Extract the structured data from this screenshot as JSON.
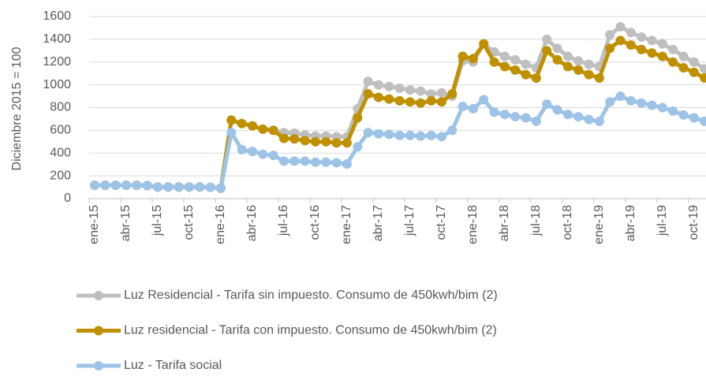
{
  "chart_data": {
    "type": "line",
    "y_label": "Diciembre 2015 = 100",
    "categories": [
      "ene-15",
      null,
      null,
      "abr-15",
      null,
      null,
      "jul-15",
      null,
      null,
      "oct-15",
      null,
      null,
      "ene-16",
      null,
      null,
      "abr-16",
      null,
      null,
      "jul-16",
      null,
      null,
      "oct-16",
      null,
      null,
      "ene-17",
      null,
      null,
      "abr-17",
      null,
      null,
      "jul-17",
      null,
      null,
      "oct-17",
      null,
      null,
      "ene-18",
      null,
      null,
      "abr-18",
      null,
      null,
      "jul-18",
      null,
      null,
      "oct-18",
      null,
      null,
      "ene-19",
      null,
      null,
      "abr-19",
      null,
      null,
      "jul-19",
      null,
      null,
      "oct-19",
      null
    ],
    "series": [
      {
        "name": "Luz Residencial - Tarifa sin impuesto. Consumo de 450kwh/bim (2)",
        "color": "#bfbfbf",
        "values": [
          118,
          118,
          118,
          118,
          118,
          115,
          102,
          102,
          102,
          102,
          102,
          100,
          92,
          690,
          660,
          640,
          610,
          600,
          580,
          575,
          560,
          550,
          550,
          545,
          545,
          790,
          1030,
          1000,
          985,
          970,
          955,
          945,
          920,
          930,
          900,
          1210,
          1200,
          1360,
          1290,
          1250,
          1220,
          1180,
          1150,
          1400,
          1320,
          1250,
          1210,
          1180,
          1160,
          1440,
          1510,
          1460,
          1420,
          1390,
          1360,
          1310,
          1250,
          1200,
          1140
        ]
      },
      {
        "name": "Luz residencial  - Tarifa con impuesto. Consumo de 450kwh/bim (2)",
        "color": "#bf9000",
        "values": [
          118,
          118,
          118,
          118,
          118,
          115,
          102,
          102,
          102,
          102,
          102,
          100,
          92,
          690,
          660,
          640,
          610,
          600,
          530,
          525,
          510,
          500,
          500,
          490,
          490,
          710,
          920,
          890,
          875,
          860,
          850,
          840,
          860,
          850,
          920,
          1250,
          1230,
          1360,
          1200,
          1160,
          1130,
          1090,
          1060,
          1300,
          1220,
          1160,
          1130,
          1090,
          1060,
          1320,
          1390,
          1350,
          1310,
          1280,
          1250,
          1200,
          1150,
          1110,
          1060
        ]
      },
      {
        "name": "Luz - Tarifa social",
        "color": "#9dc3e6",
        "values": [
          118,
          118,
          118,
          118,
          118,
          115,
          102,
          102,
          102,
          102,
          102,
          100,
          90,
          580,
          430,
          415,
          390,
          380,
          330,
          330,
          330,
          320,
          320,
          315,
          305,
          455,
          580,
          570,
          565,
          555,
          555,
          550,
          555,
          545,
          600,
          810,
          790,
          870,
          760,
          740,
          720,
          710,
          680,
          830,
          780,
          740,
          720,
          695,
          680,
          850,
          900,
          860,
          840,
          820,
          800,
          770,
          735,
          710,
          680
        ]
      }
    ],
    "ylim": [
      0,
      1600
    ],
    "yticks": [
      0,
      200,
      400,
      600,
      800,
      1000,
      1200,
      1400,
      1600
    ],
    "grid": true,
    "legend": "bottom"
  }
}
